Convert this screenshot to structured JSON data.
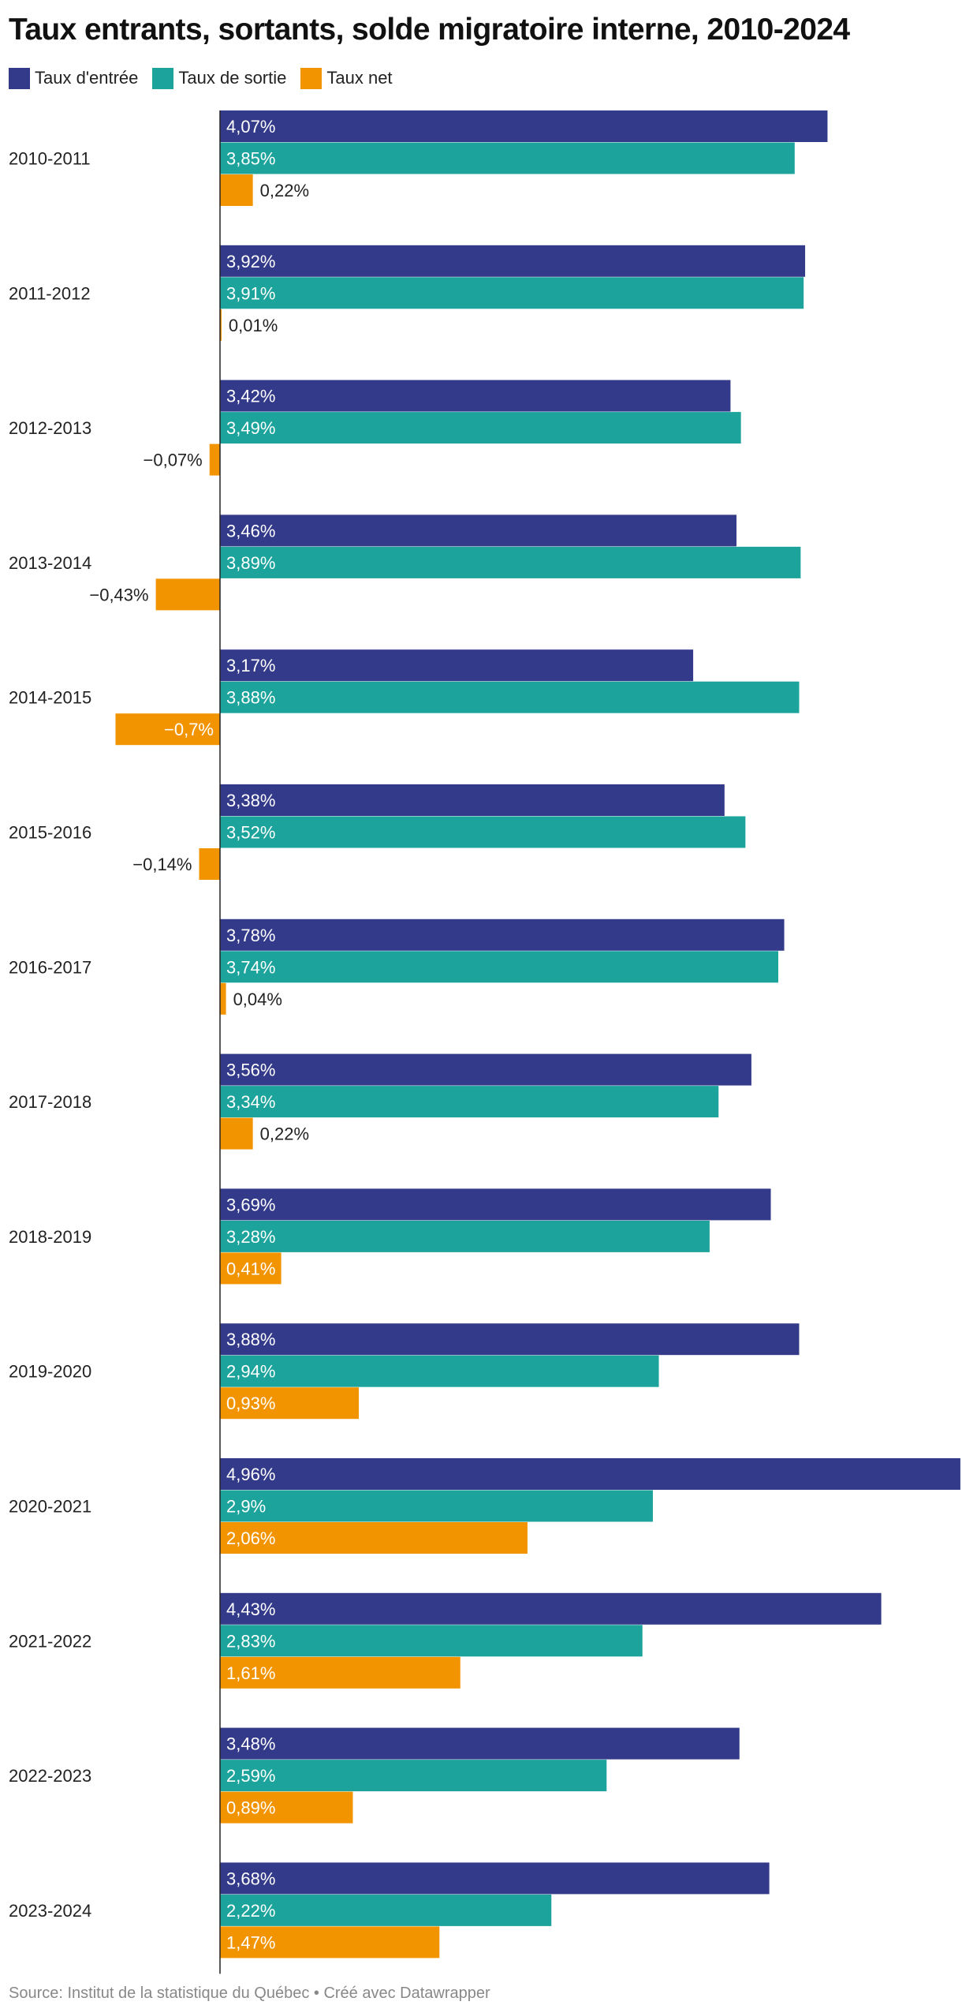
{
  "chart_data": {
    "type": "bar",
    "orientation": "horizontal",
    "title": "Taux entrants, sortants, solde migratoire interne, 2010-2024",
    "categories": [
      "2010-2011",
      "2011-2012",
      "2012-2013",
      "2013-2014",
      "2014-2015",
      "2015-2016",
      "2016-2017",
      "2017-2018",
      "2018-2019",
      "2019-2020",
      "2020-2021",
      "2021-2022",
      "2022-2023",
      "2023-2024"
    ],
    "series": [
      {
        "name": "Taux d'entrée",
        "color": "#333A8A",
        "values": [
          4.07,
          3.92,
          3.42,
          3.46,
          3.17,
          3.38,
          3.78,
          3.56,
          3.69,
          3.88,
          4.96,
          4.43,
          3.48,
          3.68
        ],
        "labels": [
          "4,07%",
          "3,92%",
          "3,42%",
          "3,46%",
          "3,17%",
          "3,38%",
          "3,78%",
          "3,56%",
          "3,69%",
          "3,88%",
          "4,96%",
          "4,43%",
          "3,48%",
          "3,68%"
        ]
      },
      {
        "name": "Taux de sortie",
        "color": "#1BA39C",
        "values": [
          3.85,
          3.91,
          3.49,
          3.89,
          3.88,
          3.52,
          3.74,
          3.34,
          3.28,
          2.94,
          2.9,
          2.83,
          2.59,
          2.22
        ],
        "labels": [
          "3,85%",
          "3,91%",
          "3,49%",
          "3,89%",
          "3,88%",
          "3,52%",
          "3,74%",
          "3,34%",
          "3,28%",
          "2,94%",
          "2,9%",
          "2,83%",
          "2,59%",
          "2,22%"
        ]
      },
      {
        "name": "Taux net",
        "color": "#F29400",
        "values": [
          0.22,
          0.01,
          -0.07,
          -0.43,
          -0.7,
          -0.14,
          0.04,
          0.22,
          0.41,
          0.93,
          2.06,
          1.61,
          0.89,
          1.47
        ],
        "labels": [
          "0,22%",
          "0,01%",
          "−0,07%",
          "−0,43%",
          "−0,7%",
          "−0,14%",
          "0,04%",
          "0,22%",
          "0,41%",
          "0,93%",
          "2,06%",
          "1,61%",
          "0,89%",
          "1,47%"
        ]
      }
    ],
    "xlim": [
      -0.7,
      4.96
    ],
    "xlabel": "",
    "ylabel": "",
    "grid": false,
    "legend_position": "top-left",
    "label_color_inside": "#ffffff",
    "label_color_outside": "#222222",
    "axis_color": "#222222"
  },
  "source": "Source: Institut de la statistique du Québec • Créé avec Datawrapper"
}
